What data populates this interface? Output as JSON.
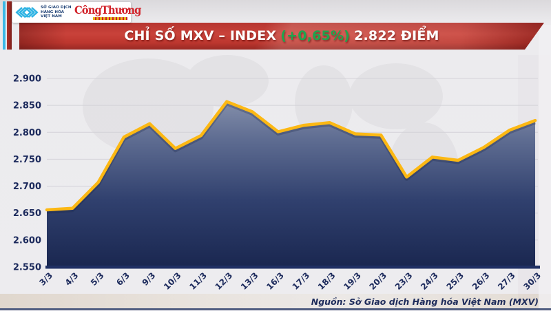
{
  "header": {
    "mxv_org_lines": [
      "SỞ GIAO DỊCH",
      "HÀNG HÓA",
      "VIỆT NAM"
    ],
    "congthuong_logo_text": "CôngThương"
  },
  "banner": {
    "title_main": "CHỈ SỐ MXV – INDEX",
    "title_change": "(+0,65%)",
    "title_value": "2.822 ĐIỂM"
  },
  "chart_data": {
    "type": "area",
    "title": "CHỈ SỐ MXV – INDEX",
    "x": [
      "3/3",
      "4/3",
      "5/3",
      "6/3",
      "9/3",
      "10/3",
      "11/3",
      "12/3",
      "13/3",
      "16/3",
      "17/3",
      "18/3",
      "19/3",
      "20/3",
      "23/3",
      "24/3",
      "25/3",
      "26/3",
      "27/3",
      "30/3"
    ],
    "values": [
      2656,
      2659,
      2707,
      2791,
      2816,
      2770,
      2794,
      2857,
      2838,
      2801,
      2813,
      2818,
      2797,
      2795,
      2717,
      2754,
      2748,
      2772,
      2804,
      2822
    ],
    "ylim": [
      2550,
      2900
    ],
    "yticks": [
      2900,
      2850,
      2800,
      2750,
      2700,
      2650,
      2600,
      2550
    ],
    "ytick_labels": [
      "2.900",
      "2.850",
      "2.800",
      "2.750",
      "2.700",
      "2.650",
      "2.600",
      "2.550"
    ],
    "xlabel": "",
    "ylabel": "",
    "grid": true,
    "legend": null,
    "line_color": "#fcb813",
    "fill_top_color": "#9aa3b9",
    "fill_mid_color": "#30406e",
    "fill_bottom_color": "#1a2750",
    "grid_color": "#d3d2d8",
    "axis_color": "#203064",
    "label_color": "#1c2a5c"
  },
  "footer": {
    "source": "Nguồn: Sở Giao dịch Hàng hóa Việt Nam (MXV)"
  },
  "colors": {
    "banner_red": "#c9423a",
    "change_green": "#1fa54e",
    "navy": "#1d2b5e",
    "logo_cyan": "#2fb3e3",
    "congthuong_red": "#d2232a"
  }
}
